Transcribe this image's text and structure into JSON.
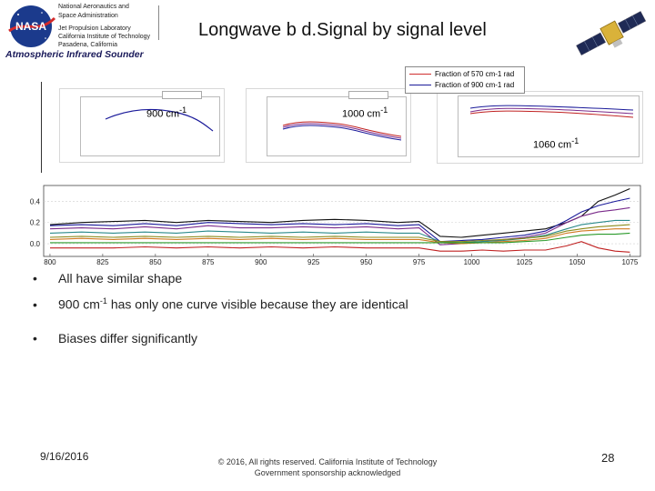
{
  "header": {
    "org_lines": [
      "National Aeronautics and",
      "Space Administration",
      "Jet Propulsion Laboratory",
      "California Institute of Technology",
      "Pasadena, California"
    ],
    "logo_text": "NASA",
    "instrument": "Atmospheric Infrared Sounder",
    "title": "Longwave b d.Signal by signal level"
  },
  "figure": {
    "legend": [
      {
        "label": "Fraction of 570 cm-1 rad",
        "color": "#d03030"
      },
      {
        "label": "Fraction of 900 cm-1 rad",
        "color": "#1a1a9a"
      }
    ],
    "panels": [
      {
        "label": "900 cm",
        "exp": "-1"
      },
      {
        "label": "1000 cm",
        "exp": "-1"
      },
      {
        "label": "1060 cm",
        "exp": "-1"
      }
    ]
  },
  "chart_data": {
    "type": "line",
    "title": "",
    "xlabel": "",
    "ylabel": "",
    "x_ticks": [
      800,
      825,
      850,
      875,
      900,
      925,
      950,
      975,
      1000,
      1025,
      1050,
      1075
    ],
    "y_ticks": [
      "0.0",
      "0.2",
      "0.4"
    ],
    "xlim": [
      797,
      1080
    ],
    "ylim": [
      -0.12,
      0.55
    ],
    "x": [
      800,
      815,
      830,
      845,
      860,
      875,
      890,
      905,
      920,
      935,
      950,
      965,
      975,
      985,
      995,
      1005,
      1015,
      1025,
      1035,
      1045,
      1052,
      1060,
      1068,
      1075
    ],
    "series": [
      {
        "name": "black-top",
        "color": "#111111",
        "values": [
          0.18,
          0.2,
          0.21,
          0.22,
          0.2,
          0.22,
          0.21,
          0.2,
          0.22,
          0.23,
          0.22,
          0.2,
          0.21,
          0.07,
          0.06,
          0.08,
          0.1,
          0.12,
          0.14,
          0.2,
          0.26,
          0.4,
          0.46,
          0.52
        ]
      },
      {
        "name": "navy",
        "color": "#1a1a9a",
        "values": [
          0.17,
          0.18,
          0.17,
          0.19,
          0.17,
          0.2,
          0.19,
          0.18,
          0.19,
          0.18,
          0.19,
          0.17,
          0.18,
          0.02,
          0.03,
          0.04,
          0.06,
          0.08,
          0.12,
          0.22,
          0.3,
          0.36,
          0.4,
          0.43
        ]
      },
      {
        "name": "purple",
        "color": "#7a2a8a",
        "values": [
          0.14,
          0.15,
          0.14,
          0.16,
          0.14,
          0.17,
          0.15,
          0.15,
          0.16,
          0.15,
          0.16,
          0.14,
          0.15,
          -0.01,
          0.0,
          0.02,
          0.04,
          0.06,
          0.1,
          0.2,
          0.26,
          0.3,
          0.32,
          0.34
        ]
      },
      {
        "name": "teal",
        "color": "#2a8a8a",
        "values": [
          0.1,
          0.11,
          0.1,
          0.11,
          0.1,
          0.12,
          0.11,
          0.1,
          0.11,
          0.1,
          0.11,
          0.1,
          0.1,
          0.02,
          0.01,
          0.02,
          0.03,
          0.05,
          0.08,
          0.14,
          0.18,
          0.2,
          0.22,
          0.22
        ]
      },
      {
        "name": "olive",
        "color": "#8a8a1a",
        "values": [
          0.06,
          0.07,
          0.06,
          0.07,
          0.06,
          0.07,
          0.06,
          0.07,
          0.06,
          0.07,
          0.06,
          0.06,
          0.06,
          0.02,
          0.02,
          0.03,
          0.04,
          0.05,
          0.07,
          0.12,
          0.14,
          0.16,
          0.17,
          0.18
        ]
      },
      {
        "name": "orange",
        "color": "#d07a20",
        "values": [
          0.04,
          0.05,
          0.04,
          0.05,
          0.04,
          0.05,
          0.04,
          0.05,
          0.04,
          0.05,
          0.04,
          0.04,
          0.04,
          0.01,
          0.0,
          0.01,
          0.02,
          0.03,
          0.05,
          0.1,
          0.12,
          0.13,
          0.14,
          0.14
        ]
      },
      {
        "name": "green",
        "color": "#2a9a2a",
        "values": [
          0.01,
          0.01,
          0.01,
          0.01,
          0.01,
          0.01,
          0.01,
          0.01,
          0.01,
          0.01,
          0.01,
          0.01,
          0.01,
          0.01,
          0.01,
          0.01,
          0.01,
          0.02,
          0.03,
          0.06,
          0.08,
          0.09,
          0.09,
          0.1
        ]
      },
      {
        "name": "red",
        "color": "#c02020",
        "values": [
          -0.04,
          -0.04,
          -0.04,
          -0.03,
          -0.04,
          -0.03,
          -0.04,
          -0.03,
          -0.04,
          -0.03,
          -0.04,
          -0.04,
          -0.04,
          -0.07,
          -0.07,
          -0.06,
          -0.07,
          -0.06,
          -0.06,
          -0.02,
          0.02,
          -0.04,
          -0.07,
          -0.08
        ]
      }
    ]
  },
  "bullets": [
    {
      "text": "All have similar shape"
    },
    {
      "pre": "900 cm",
      "sup": "-1",
      "post": " has only one curve visible because they are identical"
    },
    {
      "text": "Biases differ significantly"
    }
  ],
  "bullet_symbol": "•",
  "footer": {
    "date": "9/16/2016",
    "copyright_line1": "© 2016, All rights reserved. California Institute of Technology",
    "copyright_line2": "Government sponsorship acknowledged",
    "page": "28"
  }
}
